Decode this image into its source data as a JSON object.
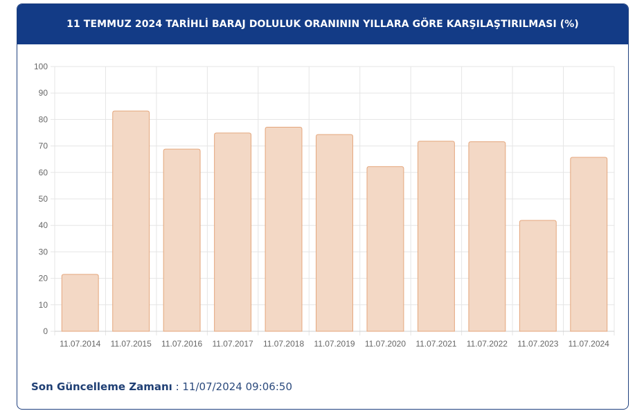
{
  "header": {
    "title": "11 TEMMUZ 2024 TARİHLİ BARAJ DOLULUK ORANININ YILLARA GÖRE KARŞILAŞTIRILMASI (%)"
  },
  "footer": {
    "label": "Son Güncelleme Zamanı",
    "separator": " : ",
    "value": "11/07/2024 09:06:50"
  },
  "colors": {
    "header_bg": "#133b86",
    "bar_fill": "#f3d8c5",
    "bar_stroke": "#e4a67c",
    "grid": "#e5e5e5"
  },
  "chart_data": {
    "type": "bar",
    "title": "11 TEMMUZ 2024 TARİHLİ BARAJ DOLULUK ORANININ YILLARA GÖRE KARŞILAŞTIRILMASI (%)",
    "categories": [
      "11.07.2014",
      "11.07.2015",
      "11.07.2016",
      "11.07.2017",
      "11.07.2018",
      "11.07.2019",
      "11.07.2020",
      "11.07.2021",
      "11.07.2022",
      "11.07.2023",
      "11.07.2024"
    ],
    "values": [
      21.5,
      83.2,
      68.8,
      74.9,
      77.1,
      74.3,
      62.2,
      71.8,
      71.6,
      41.9,
      65.7
    ],
    "ylim": [
      0,
      100
    ],
    "yticks": [
      0,
      10,
      20,
      30,
      40,
      50,
      60,
      70,
      80,
      90,
      100
    ],
    "grid": true,
    "legend": "none"
  }
}
